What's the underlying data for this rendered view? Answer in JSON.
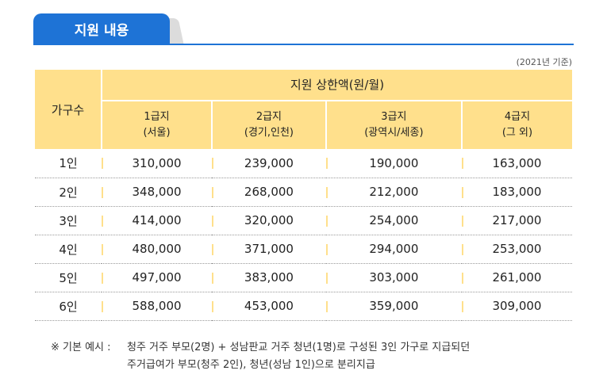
{
  "section": {
    "title": "지원 내용"
  },
  "basis": "(2021년 기준)",
  "table": {
    "row_header": "가구수",
    "group_header": "지원 상한액(원/월)",
    "tiers": [
      {
        "line1": "1급지",
        "line2": "(서울)"
      },
      {
        "line1": "2급지",
        "line2": "(경기,인천)"
      },
      {
        "line1": "3급지",
        "line2": "(광역시/세종)"
      },
      {
        "line1": "4급지",
        "line2": "(그 외)"
      }
    ],
    "rows": [
      {
        "label": "1인",
        "values": [
          "310,000",
          "239,000",
          "190,000",
          "163,000"
        ]
      },
      {
        "label": "2인",
        "values": [
          "348,000",
          "268,000",
          "212,000",
          "183,000"
        ]
      },
      {
        "label": "3인",
        "values": [
          "414,000",
          "320,000",
          "254,000",
          "217,000"
        ]
      },
      {
        "label": "4인",
        "values": [
          "480,000",
          "371,000",
          "294,000",
          "253,000"
        ]
      },
      {
        "label": "5인",
        "values": [
          "497,000",
          "383,000",
          "303,000",
          "261,000"
        ]
      },
      {
        "label": "6인",
        "values": [
          "588,000",
          "453,000",
          "359,000",
          "309,000"
        ]
      }
    ]
  },
  "note": {
    "label": "※ 기본 예시 :",
    "line1": "청주 거주 부모(2명) + 성남판교 거주 청년(1명)로 구성된 3인 가구로 지급되던",
    "line2": "주거급여가 부모(청주 2인), 청년(성남 1인)으로 분리지급"
  }
}
